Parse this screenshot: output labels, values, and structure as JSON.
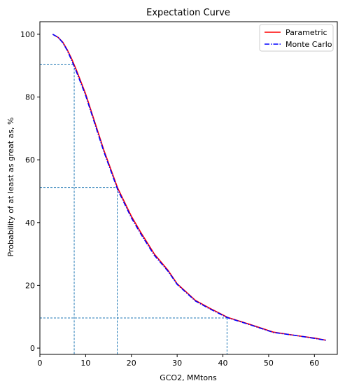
{
  "chart_data": {
    "type": "line",
    "title": "Expectation Curve",
    "xlabel": "GCO2, MMtons",
    "ylabel": "Probability of at least as great as, %",
    "xlim": [
      0,
      65
    ],
    "ylim": [
      -2,
      104
    ],
    "x_ticks": [
      "0",
      "10",
      "20",
      "30",
      "40",
      "50",
      "60"
    ],
    "y_ticks": [
      "0",
      "20",
      "40",
      "60",
      "80",
      "100"
    ],
    "grid": false,
    "legend_position": "top-right",
    "series": [
      {
        "name": "Parametric",
        "color": "#ff0000",
        "style": "solid",
        "x": [
          2.8,
          4.0,
          5.0,
          6.0,
          7.0,
          8.0,
          10.0,
          12.0,
          14.0,
          17.0,
          20.0,
          22.0,
          25.0,
          28.0,
          30.0,
          34.0,
          37.0,
          41.0,
          46.0,
          51.0,
          56.0,
          60.0,
          62.5
        ],
        "y": [
          100,
          99,
          97.5,
          95,
          92,
          88.5,
          81,
          72,
          63,
          51,
          42,
          37,
          30,
          24.8,
          20.5,
          15.2,
          12.8,
          9.8,
          7.5,
          5.1,
          4.0,
          3.2,
          2.5
        ]
      },
      {
        "name": "Monte Carlo",
        "color": "#0000ff",
        "style": "dashdot",
        "x": [
          2.8,
          4.0,
          5.0,
          6.0,
          7.0,
          8.0,
          10.0,
          12.0,
          14.0,
          17.0,
          20.0,
          22.0,
          25.0,
          28.0,
          30.0,
          34.0,
          37.0,
          41.0,
          46.0,
          51.0,
          56.0,
          60.0,
          62.5
        ],
        "y": [
          100,
          99,
          97.3,
          94.8,
          91.5,
          88,
          80.5,
          71.5,
          62.5,
          50.5,
          41.5,
          36.5,
          29.6,
          24.5,
          20.3,
          15.0,
          12.6,
          9.7,
          7.4,
          5.0,
          4.0,
          3.1,
          2.5
        ]
      }
    ],
    "reference_lines": [
      {
        "x": 7.5,
        "y": 90.3,
        "color": "#1f77b4",
        "style": "dashed"
      },
      {
        "x": 16.9,
        "y": 51.2,
        "color": "#1f77b4",
        "style": "dashed"
      },
      {
        "x": 40.9,
        "y": 9.6,
        "color": "#1f77b4",
        "style": "dashed"
      }
    ]
  }
}
